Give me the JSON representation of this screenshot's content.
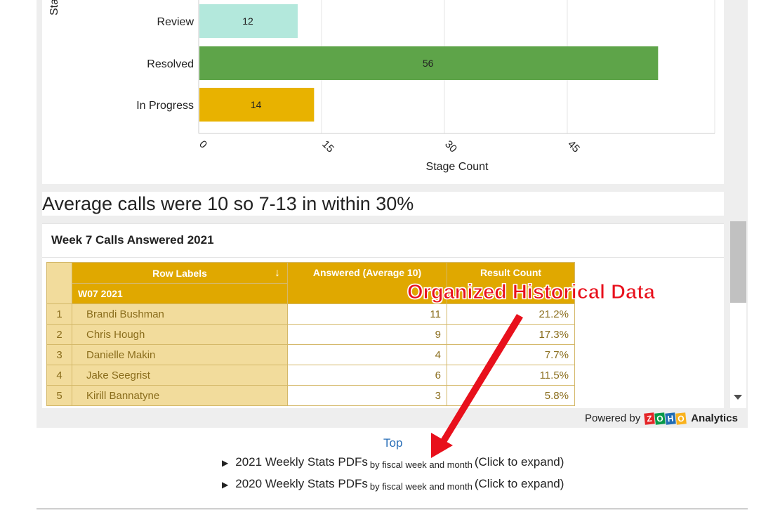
{
  "chart_data": {
    "type": "bar",
    "orientation": "horizontal",
    "categories": [
      "Review",
      "Resolved",
      "In Progress"
    ],
    "values": [
      12,
      56,
      14
    ],
    "colors": [
      "#b3e8dc",
      "#5ea449",
      "#e8b200"
    ],
    "xlabel": "Stage Count",
    "ylabel": "Sta",
    "xticks": [
      0,
      15,
      30,
      45
    ],
    "xlim": [
      0,
      63
    ],
    "grid": true
  },
  "heading": "Average calls were 10 so 7-13 in within 30%",
  "table": {
    "title": "Week 7 Calls Answered 2021",
    "columns": [
      "Row Labels",
      "Answered (Average 10)",
      "Result Count"
    ],
    "sort_icon": "↓",
    "group_label": "W07 2021",
    "rows": [
      {
        "idx": "1",
        "name": "Brandi Bushman",
        "answered": "11",
        "result": "21.2%"
      },
      {
        "idx": "2",
        "name": "Chris Hough",
        "answered": "9",
        "result": "17.3%"
      },
      {
        "idx": "3",
        "name": "Danielle Makin",
        "answered": "4",
        "result": "7.7%"
      },
      {
        "idx": "4",
        "name": "Jake Seegrist",
        "answered": "6",
        "result": "11.5%"
      },
      {
        "idx": "5",
        "name": "Kirill Bannatyne",
        "answered": "3",
        "result": "5.8%"
      }
    ]
  },
  "footer": {
    "powered_by": "Powered by",
    "zoho_letters": [
      "Z",
      "O",
      "H",
      "O"
    ],
    "zoho_colors": [
      "#e42527",
      "#089949",
      "#226db4",
      "#f9b21d"
    ],
    "analytics": "Analytics"
  },
  "top_link": "Top",
  "expanders": [
    {
      "label": "2021 Weekly Stats PDFs",
      "small": "by fiscal week and month",
      "hint": "(Click to expand)"
    },
    {
      "label": "2020 Weekly Stats PDFs",
      "small": "by fiscal week and month",
      "hint": "(Click to expand)"
    }
  ],
  "annotation": {
    "text": "Organized Historical Data",
    "color": "#e8101c"
  }
}
